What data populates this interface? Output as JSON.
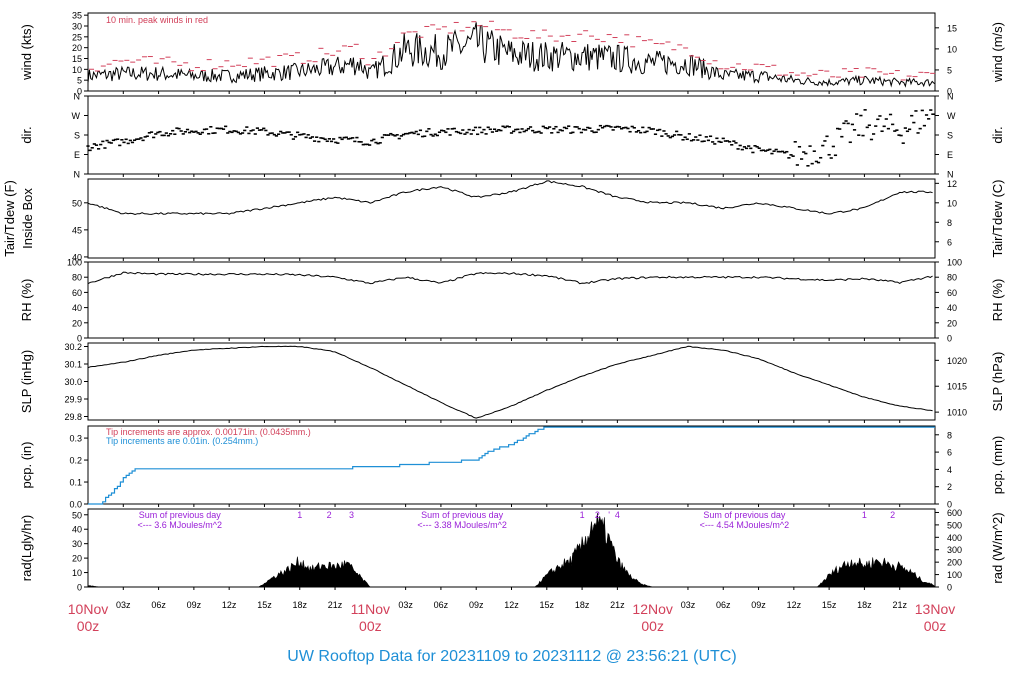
{
  "footer": "UW Rooftop Data for 20231109  to  20231112 @ 23:56:21  (UTC)",
  "colors": {
    "red": "#d2405a",
    "blue": "#1e8fd6",
    "purple": "#9a20d8",
    "black": "#000000"
  },
  "chart_data": [
    {
      "id": "wind",
      "type": "line",
      "ylabel": "wind (kts)",
      "ylabel_right": "wind (m/s)",
      "ylim": [
        0,
        36
      ],
      "y_ticks": [
        0,
        5,
        10,
        15,
        20,
        25,
        30,
        35
      ],
      "right_ticks": [
        {
          "v": 0,
          "l": "0"
        },
        {
          "v": 9.72,
          "l": "5"
        },
        {
          "v": 19.44,
          "l": "10"
        },
        {
          "v": 29.16,
          "l": "15"
        }
      ],
      "annotation": "10 min. peak winds in red",
      "series": [
        {
          "role": "wind",
          "x": [
            0,
            3,
            6,
            9,
            12,
            15,
            18,
            21,
            23,
            24,
            27,
            30,
            33,
            36,
            39,
            42,
            45,
            48,
            51,
            54,
            57,
            60,
            63,
            66,
            69,
            72
          ],
          "y": [
            7,
            8,
            8,
            7,
            7,
            8,
            9,
            11,
            13,
            8,
            19,
            18,
            22,
            17,
            16,
            16,
            15,
            13,
            13,
            7,
            7,
            5,
            4,
            5,
            4,
            4
          ]
        },
        {
          "role": "gust",
          "x": [
            0,
            3,
            6,
            9,
            12,
            15,
            18,
            21,
            23,
            24,
            27,
            30,
            33,
            36,
            39,
            42,
            45,
            48,
            51,
            54,
            57,
            60,
            63,
            66,
            69,
            72
          ],
          "y": [
            11,
            14,
            13,
            12,
            13,
            14,
            15,
            18,
            20,
            13,
            26,
            28,
            31,
            27,
            25,
            26,
            25,
            21,
            20,
            12,
            11,
            8,
            7,
            8,
            7,
            7
          ]
        }
      ]
    },
    {
      "id": "dir",
      "type": "scatter",
      "ylabel": "dir.",
      "ylabel_right": "dir.",
      "ylim": [
        0,
        360
      ],
      "y_tick_labels": [
        "N",
        "E",
        "S",
        "W",
        "N"
      ],
      "y_tick_values": [
        0,
        90,
        180,
        270,
        360
      ],
      "series": [
        {
          "x": [
            0,
            3,
            6,
            9,
            12,
            15,
            18,
            21,
            24,
            27,
            30,
            33,
            36,
            39,
            42,
            45,
            48,
            51,
            54,
            57,
            60,
            63,
            66,
            69,
            72
          ],
          "y": [
            125,
            150,
            190,
            200,
            205,
            195,
            175,
            160,
            150,
            185,
            195,
            200,
            205,
            205,
            205,
            210,
            200,
            170,
            150,
            110,
            85,
            130,
            230,
            200,
            280
          ]
        }
      ]
    },
    {
      "id": "temp",
      "type": "line",
      "ylabel": "Tair/Tdew (F)",
      "ylabel2": "Inside Box",
      "ylabel_right": "Tair/Tdew (C)",
      "ylim": [
        39.8,
        54.4
      ],
      "y_ticks": [
        40,
        45,
        50
      ],
      "right_ticks": [
        {
          "v": 42.8,
          "l": "6"
        },
        {
          "v": 46.4,
          "l": "8"
        },
        {
          "v": 50,
          "l": "10"
        },
        {
          "v": 53.6,
          "l": "12"
        }
      ],
      "series": [
        {
          "x": [
            0,
            3,
            6,
            9,
            12,
            15,
            18,
            21,
            24,
            27,
            30,
            33,
            36,
            39,
            42,
            45,
            48,
            51,
            54,
            57,
            60,
            63,
            66,
            69,
            72
          ],
          "y": [
            50,
            48,
            48,
            48,
            48,
            49,
            50,
            51,
            50,
            52,
            53,
            51,
            52,
            54,
            53,
            51,
            50,
            50,
            49,
            50,
            49,
            48,
            49,
            52,
            52
          ]
        }
      ]
    },
    {
      "id": "rh",
      "type": "line",
      "ylabel": "RH (%)",
      "ylabel_right": "RH (%)",
      "ylim": [
        0,
        100
      ],
      "y_ticks": [
        0,
        20,
        40,
        60,
        80,
        100
      ],
      "right_ticks": [
        {
          "v": 0,
          "l": "0"
        },
        {
          "v": 20,
          "l": "20"
        },
        {
          "v": 40,
          "l": "40"
        },
        {
          "v": 60,
          "l": "60"
        },
        {
          "v": 80,
          "l": "80"
        },
        {
          "v": 100,
          "l": "100"
        }
      ],
      "series": [
        {
          "x": [
            0,
            3,
            6,
            9,
            12,
            15,
            18,
            21,
            24,
            27,
            30,
            33,
            36,
            39,
            42,
            45,
            48,
            51,
            54,
            57,
            60,
            63,
            66,
            69,
            72
          ],
          "y": [
            72,
            86,
            84,
            84,
            84,
            84,
            83,
            80,
            72,
            80,
            72,
            85,
            85,
            82,
            72,
            78,
            80,
            80,
            80,
            80,
            78,
            76,
            78,
            73,
            82
          ]
        }
      ]
    },
    {
      "id": "slp",
      "type": "line",
      "ylabel": "SLP (inHg)",
      "ylabel_right": "SLP (hPa)",
      "ylim": [
        29.78,
        30.22
      ],
      "y_ticks": [
        29.8,
        29.9,
        30.0,
        30.1,
        30.2
      ],
      "right_ticks": [
        {
          "v": 29.825,
          "l": "1010"
        },
        {
          "v": 29.973,
          "l": "1015"
        },
        {
          "v": 30.121,
          "l": "1020"
        }
      ],
      "series": [
        {
          "x": [
            0,
            3,
            6,
            9,
            12,
            15,
            18,
            21,
            24,
            27,
            30,
            33,
            36,
            39,
            42,
            45,
            48,
            51,
            54,
            57,
            60,
            63,
            66,
            69,
            72
          ],
          "y": [
            30.08,
            30.11,
            30.15,
            30.18,
            30.19,
            30.2,
            30.2,
            30.17,
            30.08,
            29.98,
            29.88,
            29.79,
            29.86,
            29.95,
            30.03,
            30.1,
            30.15,
            30.2,
            30.18,
            30.13,
            30.05,
            29.98,
            29.91,
            29.86,
            29.83
          ]
        }
      ]
    },
    {
      "id": "pcp",
      "type": "step",
      "ylabel": "pcp. (in)",
      "ylabel_right": "pcp. (mm)",
      "ylim": [
        0,
        0.355
      ],
      "y_ticks": [
        0.0,
        0.1,
        0.2,
        0.3
      ],
      "right_ticks": [
        {
          "v": 0,
          "l": "0"
        },
        {
          "v": 0.0787,
          "l": "2"
        },
        {
          "v": 0.1575,
          "l": "4"
        },
        {
          "v": 0.2362,
          "l": "6"
        },
        {
          "v": 0.315,
          "l": "8"
        }
      ],
      "notes": [
        "Tip increments are approx. 0.00171in. (0.0435mm.)",
        "Tip increments are 0.01in. (0.254mm.)"
      ],
      "series": [
        {
          "x": [
            0,
            1,
            2,
            3,
            4,
            10,
            20,
            25,
            33,
            34,
            36,
            37,
            38,
            39,
            40,
            72
          ],
          "y": [
            0,
            0,
            0.05,
            0.12,
            0.16,
            0.16,
            0.16,
            0.17,
            0.2,
            0.24,
            0.27,
            0.3,
            0.33,
            0.35,
            0.35,
            0.35
          ]
        }
      ]
    },
    {
      "id": "rad",
      "type": "area",
      "ylabel": "rad(Lgly/hr)",
      "ylabel_right": "rad (W/m^2)",
      "ylim": [
        0,
        54
      ],
      "y_ticks": [
        0,
        10,
        20,
        30,
        40,
        50
      ],
      "right_ticks": [
        {
          "v": 0,
          "l": "0"
        },
        {
          "v": 8.6,
          "l": "100"
        },
        {
          "v": 17.2,
          "l": "200"
        },
        {
          "v": 25.8,
          "l": "300"
        },
        {
          "v": 34.4,
          "l": "400"
        },
        {
          "v": 43,
          "l": "500"
        },
        {
          "v": 51.6,
          "l": "600"
        }
      ],
      "annotations": [
        {
          "text": "Sum of previous day",
          "x": 7.8,
          "row": 0
        },
        {
          "text": "<--- 3.6 MJoules/m^2",
          "x": 7.8,
          "row": 1
        },
        {
          "text": "Sum of previous day",
          "x": 31.8,
          "row": 0
        },
        {
          "text": "<--- 3.38 MJoules/m^2",
          "x": 31.8,
          "row": 1
        },
        {
          "text": "Sum of previous day",
          "x": 55.8,
          "row": 0
        },
        {
          "text": "<--- 4.54 MJoules/m^2",
          "x": 55.8,
          "row": 1
        }
      ],
      "markers": [
        {
          "text": "1",
          "x": 18
        },
        {
          "text": "2",
          "x": 20.5
        },
        {
          "text": "3",
          "x": 22.4
        },
        {
          "text": "1",
          "x": 42
        },
        {
          "text": "2",
          "x": 43.3
        },
        {
          "text": "'",
          "x": 44.3
        },
        {
          "text": "4",
          "x": 45
        },
        {
          "text": "1",
          "x": 66
        },
        {
          "text": "2",
          "x": 68.4
        }
      ],
      "series": [
        {
          "x": [
            0,
            1,
            14.5,
            16,
            17,
            18,
            19,
            20,
            21,
            22,
            23,
            24,
            38,
            39,
            40,
            41,
            42,
            43,
            44,
            45,
            46,
            47,
            48,
            62,
            63,
            64,
            65,
            66,
            67,
            68,
            69,
            70,
            71,
            72
          ],
          "y": [
            1,
            0,
            0,
            8,
            12,
            18,
            12,
            15,
            14,
            16,
            8,
            0,
            0,
            8,
            14,
            18,
            28,
            45,
            38,
            18,
            8,
            2,
            0,
            0,
            8,
            14,
            18,
            15,
            18,
            16,
            14,
            10,
            4,
            1
          ]
        }
      ]
    }
  ],
  "x_axis": {
    "xlim": [
      0,
      72
    ],
    "tick_labels": [
      {
        "x": 3,
        "l": "03z"
      },
      {
        "x": 6,
        "l": "06z"
      },
      {
        "x": 9,
        "l": "09z"
      },
      {
        "x": 12,
        "l": "12z"
      },
      {
        "x": 15,
        "l": "15z"
      },
      {
        "x": 18,
        "l": "18z"
      },
      {
        "x": 21,
        "l": "21z"
      },
      {
        "x": 27,
        "l": "03z"
      },
      {
        "x": 30,
        "l": "06z"
      },
      {
        "x": 33,
        "l": "09z"
      },
      {
        "x": 36,
        "l": "12z"
      },
      {
        "x": 39,
        "l": "15z"
      },
      {
        "x": 42,
        "l": "18z"
      },
      {
        "x": 45,
        "l": "21z"
      },
      {
        "x": 51,
        "l": "03z"
      },
      {
        "x": 54,
        "l": "06z"
      },
      {
        "x": 57,
        "l": "09z"
      },
      {
        "x": 60,
        "l": "12z"
      },
      {
        "x": 63,
        "l": "15z"
      },
      {
        "x": 66,
        "l": "18z"
      },
      {
        "x": 69,
        "l": "21z"
      }
    ],
    "day_labels": [
      {
        "x": 0,
        "date": "10Nov",
        "time": "00z"
      },
      {
        "x": 24,
        "date": "11Nov",
        "time": "00z"
      },
      {
        "x": 48,
        "date": "12Nov",
        "time": "00z"
      },
      {
        "x": 72,
        "date": "13Nov",
        "time": "00z"
      }
    ]
  }
}
